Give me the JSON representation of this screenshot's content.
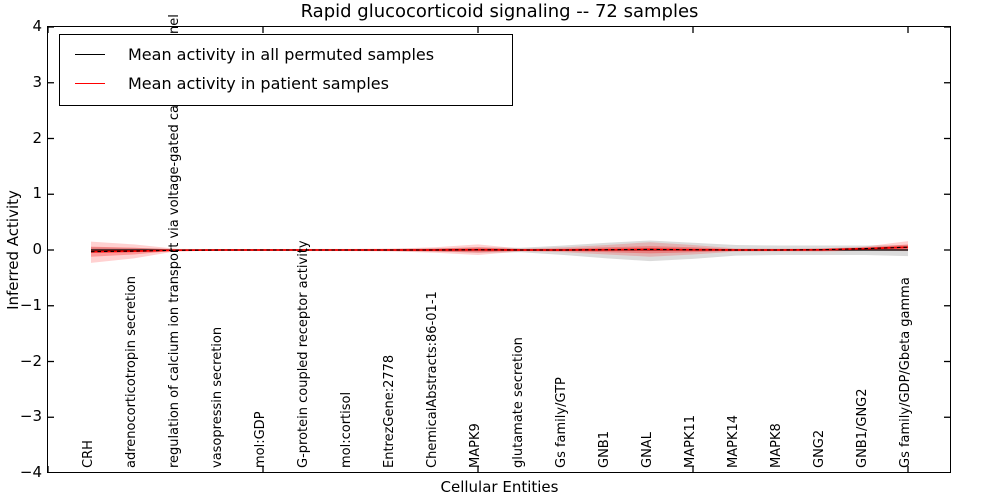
{
  "figure": {
    "title": "Rapid glucocorticoid signaling -- 72 samples",
    "xlabel": "Cellular Entities",
    "ylabel": "Inferred Activity",
    "legend": [
      {
        "label": "Mean activity in all permuted samples",
        "color": "#000000"
      },
      {
        "label": "Mean activity in patient samples",
        "color": "#ff0000"
      }
    ]
  },
  "chart_data": {
    "type": "line",
    "title": "Rapid glucocorticoid signaling -- 72 samples",
    "xlabel": "Cellular Entities",
    "ylabel": "Inferred Activity",
    "xlim": [
      0,
      21
    ],
    "ylim": [
      -4,
      4
    ],
    "yticks": [
      4,
      3,
      2,
      1,
      0,
      -1,
      -2,
      -3,
      -4
    ],
    "ytick_labels": [
      "4",
      "3",
      "2",
      "1",
      "0",
      "−1",
      "−2",
      "−3",
      "−4"
    ],
    "xtick_positions": [
      0,
      5,
      10,
      15,
      20
    ],
    "grid": false,
    "legend_position": "upper left",
    "categories": [
      "CRH",
      "adrenocorticotropin secretion",
      "regulation of calcium ion transport via voltage-gated calcium channel",
      "vasopressin secretion",
      "mol:GDP",
      "G-protein coupled receptor activity",
      "mol:cortisol",
      "EntrezGene:2778",
      "ChemicalAbstracts:86-01-1",
      "MAPK9",
      "glutamate secretion",
      "Gs family/GTP",
      "GNB1",
      "GNAL",
      "MAPK11",
      "MAPK14",
      "MAPK8",
      "GNG2",
      "GNB1/GNG2",
      "Gs family/GDP/Gbeta gamma"
    ],
    "series": [
      {
        "name": "Mean activity in all permuted samples",
        "color": "#000000",
        "style": "solid",
        "values": [
          0,
          0,
          0,
          0,
          0,
          0,
          0,
          0,
          0,
          0,
          0,
          0,
          0,
          0,
          0,
          0,
          0,
          0,
          0,
          0
        ]
      },
      {
        "name": "Mean activity in patient samples",
        "color": "#ff0000",
        "style": "solid",
        "values": [
          -0.03,
          -0.02,
          -0.005,
          0,
          0,
          0,
          0,
          0,
          0,
          0.005,
          0,
          0,
          0.005,
          0.01,
          0.005,
          0,
          0,
          0.005,
          0.025,
          0.05
        ]
      },
      {
        "name": "patient mean dashed overlay",
        "color": "#000000",
        "style": "dashed",
        "values": [
          -0.03,
          -0.02,
          -0.005,
          0,
          0,
          0,
          0,
          0,
          0,
          0.005,
          0,
          0,
          0.005,
          0.01,
          0.005,
          0,
          0,
          0.005,
          0.025,
          0.05
        ]
      }
    ],
    "bands": [
      {
        "name": "permuted-samples-std",
        "color": "rgba(90,90,90,0.22)",
        "upper": [
          0.05,
          0.04,
          0.015,
          0.015,
          0.015,
          0.015,
          0.015,
          0.02,
          0.03,
          0.05,
          0.04,
          0.08,
          0.13,
          0.17,
          0.13,
          0.09,
          0.08,
          0.08,
          0.08,
          0.09
        ],
        "lower": [
          -0.05,
          -0.04,
          -0.015,
          -0.015,
          -0.015,
          -0.015,
          -0.015,
          -0.02,
          -0.03,
          -0.05,
          -0.04,
          -0.09,
          -0.15,
          -0.2,
          -0.16,
          -0.1,
          -0.09,
          -0.09,
          -0.09,
          -0.11
        ]
      },
      {
        "name": "patient-samples-std-outer",
        "color": "rgba(255,0,0,0.18)",
        "upper": [
          0.15,
          0.1,
          0.02,
          0.015,
          0.015,
          0.02,
          0.02,
          0.025,
          0.05,
          0.1,
          0.025,
          0.05,
          0.09,
          0.14,
          0.09,
          0.03,
          0.025,
          0.03,
          0.06,
          0.16
        ],
        "lower": [
          -0.23,
          -0.15,
          -0.02,
          -0.015,
          -0.015,
          -0.02,
          -0.02,
          -0.025,
          -0.05,
          -0.09,
          -0.025,
          -0.04,
          -0.08,
          -0.12,
          -0.08,
          -0.03,
          -0.025,
          -0.03,
          -0.01,
          -0.02
        ]
      },
      {
        "name": "patient-samples-std-inner",
        "color": "rgba(255,0,0,0.28)",
        "upper": [
          0.06,
          0.04,
          0.01,
          0.008,
          0.008,
          0.01,
          0.01,
          0.012,
          0.025,
          0.05,
          0.012,
          0.025,
          0.05,
          0.07,
          0.05,
          0.015,
          0.012,
          0.015,
          0.04,
          0.1
        ],
        "lower": [
          -0.12,
          -0.08,
          -0.01,
          -0.008,
          -0.008,
          -0.01,
          -0.01,
          -0.012,
          -0.025,
          -0.045,
          -0.012,
          -0.02,
          -0.04,
          -0.06,
          -0.04,
          -0.015,
          -0.012,
          -0.015,
          -0.005,
          -0.01
        ]
      }
    ]
  },
  "layout_colors": {
    "axis": "#000000",
    "background": "#ffffff",
    "patient_line": "#ff0000",
    "permuted_line": "#000000"
  }
}
